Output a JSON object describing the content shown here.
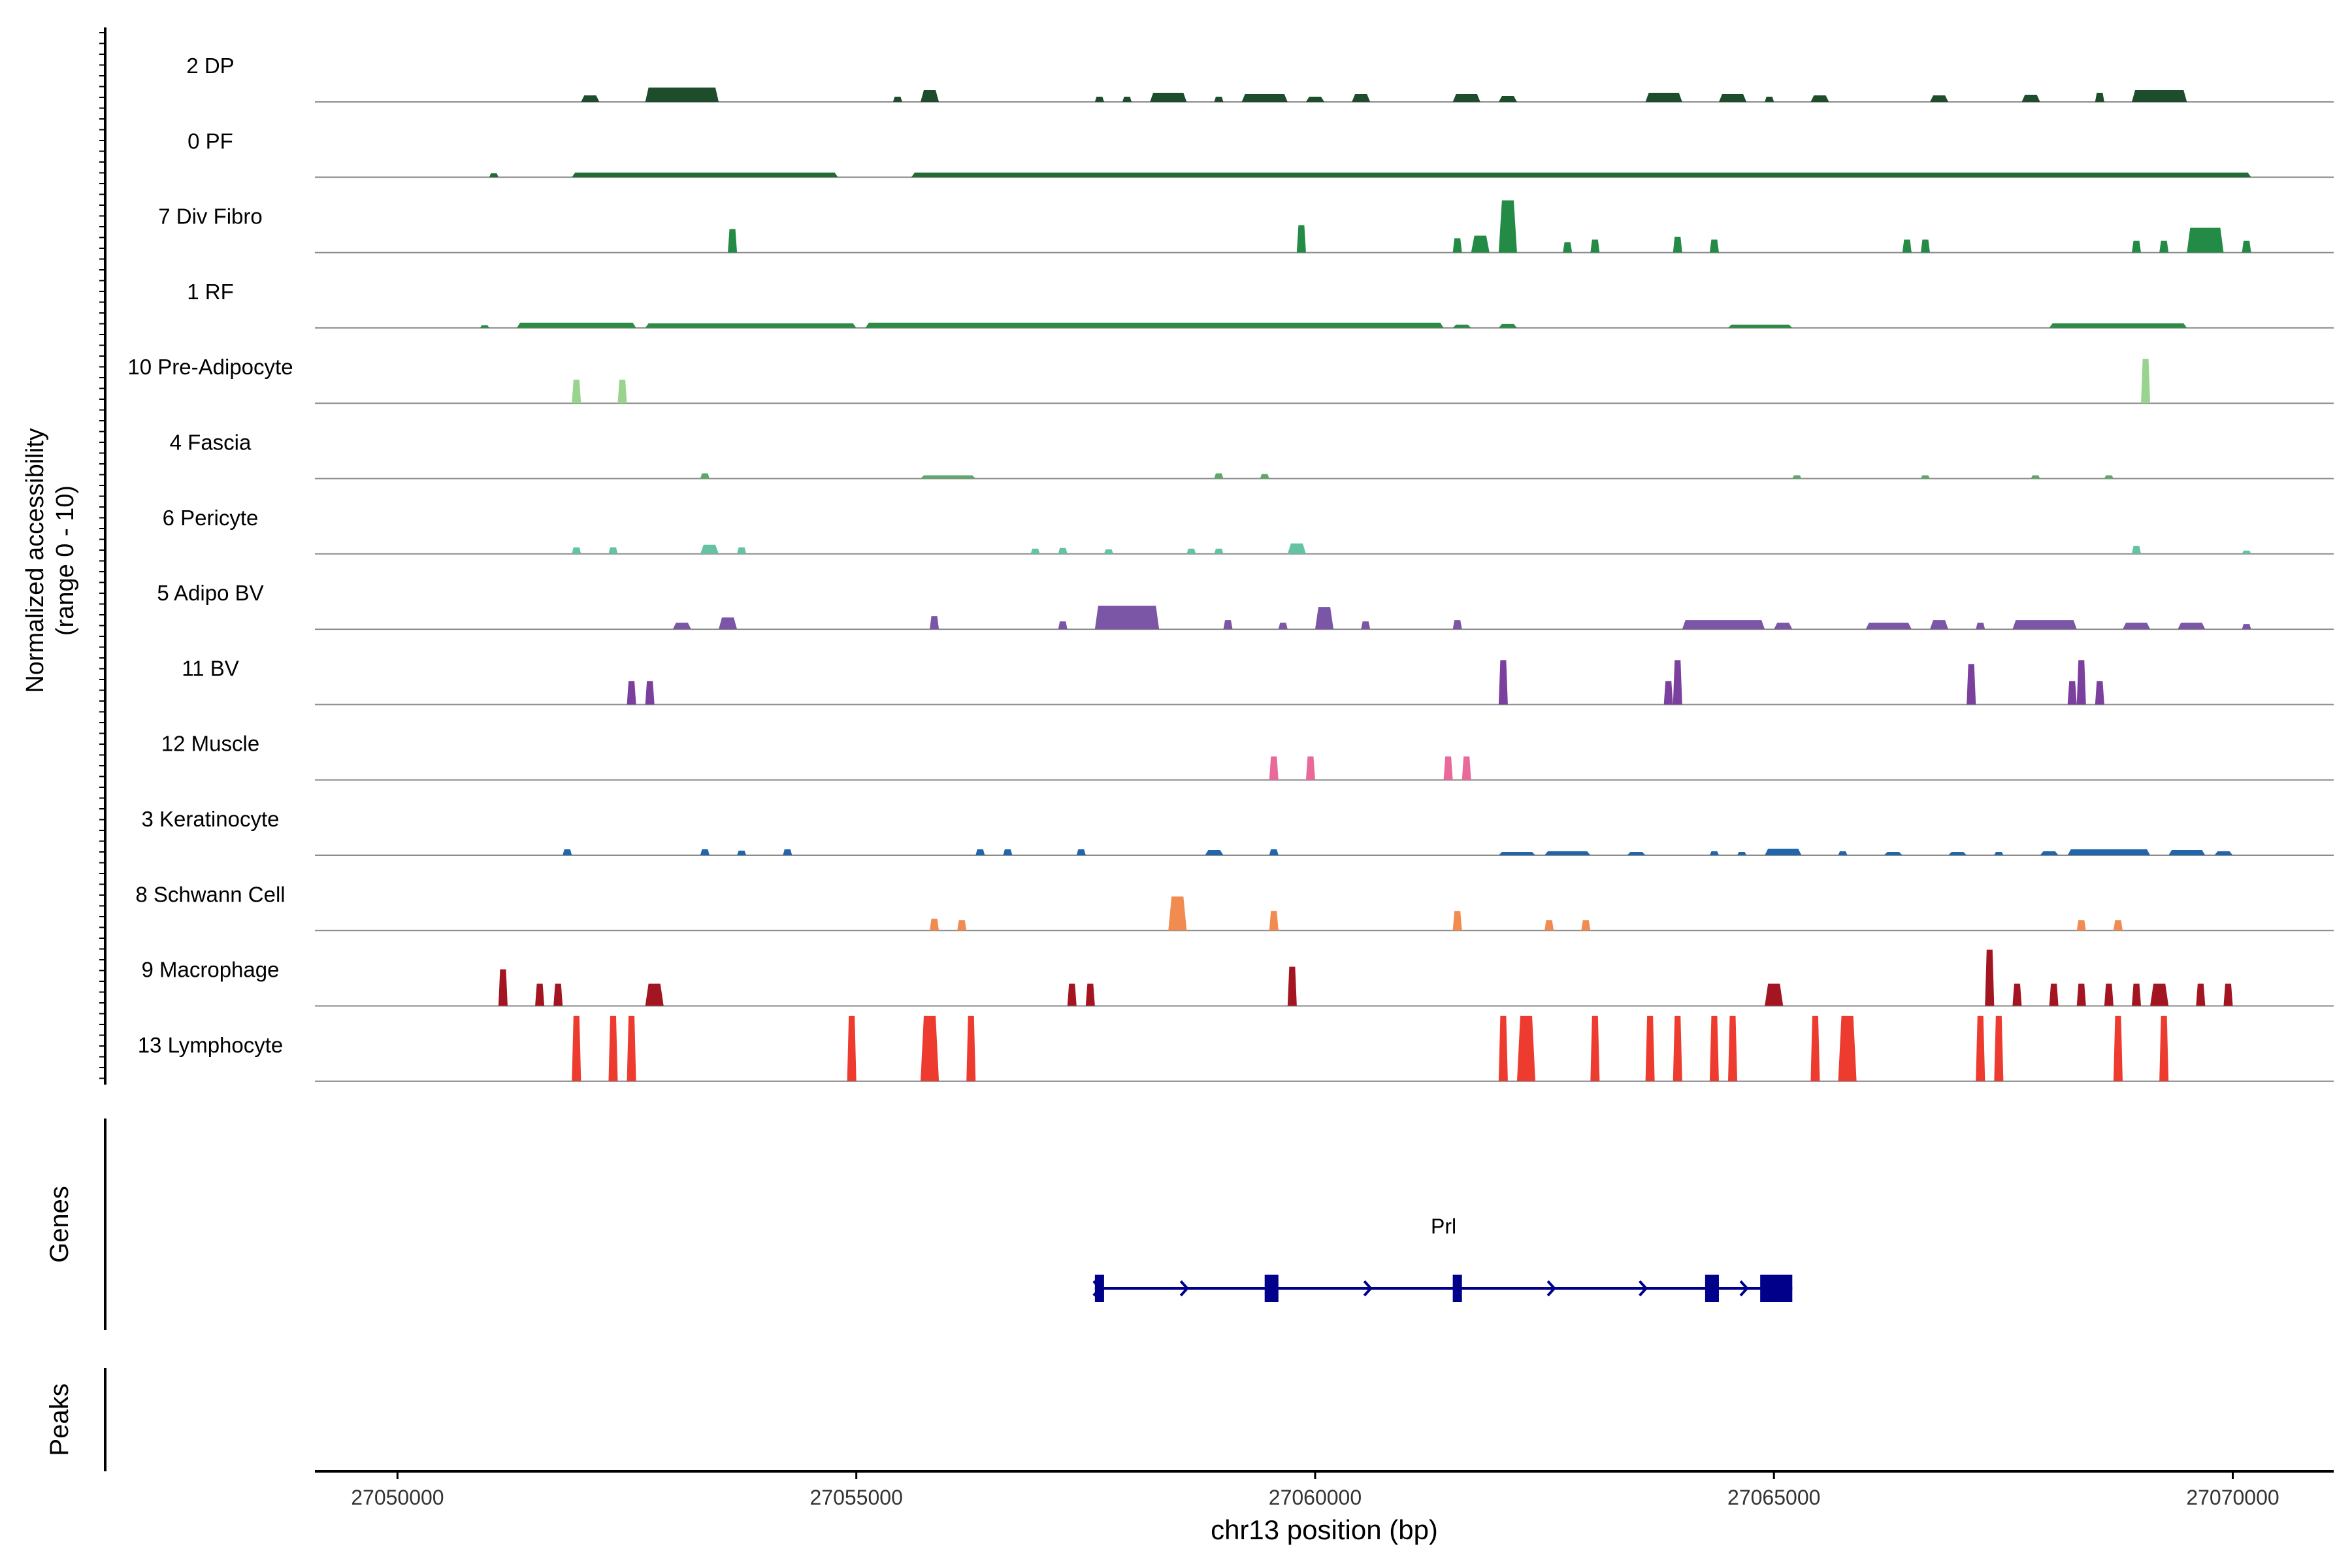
{
  "chart_data": {
    "type": "area",
    "chromosome": "chr13",
    "xlabel": "chr13 position (bp)",
    "ylabel_line1": "Normalized accessibility",
    "ylabel_line2": "(range 0 - 10)",
    "ylim": [
      0,
      10
    ],
    "xlim": [
      27049100,
      27071100
    ],
    "x_ticks": [
      27050000,
      27055000,
      27060000,
      27065000,
      27070000
    ],
    "tracks": [
      {
        "name": "2 DP",
        "color": "#1E4D2B",
        "peaks": [
          [
            27052000,
            27052200,
            1.0
          ],
          [
            27052700,
            27053500,
            2.2
          ],
          [
            27055400,
            27055500,
            0.8
          ],
          [
            27055700,
            27055900,
            1.8
          ],
          [
            27057600,
            27057700,
            0.8
          ],
          [
            27057900,
            27058000,
            0.8
          ],
          [
            27058200,
            27058600,
            1.4
          ],
          [
            27058900,
            27059000,
            0.8
          ],
          [
            27059200,
            27059700,
            1.2
          ],
          [
            27059900,
            27060100,
            0.8
          ],
          [
            27060400,
            27060600,
            1.2
          ],
          [
            27061500,
            27061800,
            1.2
          ],
          [
            27062000,
            27062200,
            0.9
          ],
          [
            27063600,
            27064000,
            1.4
          ],
          [
            27064400,
            27064700,
            1.2
          ],
          [
            27064900,
            27065000,
            0.8
          ],
          [
            27065400,
            27065600,
            1.0
          ],
          [
            27066700,
            27066900,
            1.0
          ],
          [
            27067700,
            27067900,
            1.1
          ],
          [
            27068500,
            27068600,
            1.4
          ],
          [
            27068900,
            27069500,
            1.8
          ]
        ]
      },
      {
        "name": "0 PF",
        "color": "#236B35",
        "peaks": [
          [
            27051000,
            27051100,
            0.6
          ],
          [
            27051900,
            27054800,
            0.7
          ],
          [
            27055600,
            27070200,
            0.7
          ]
        ]
      },
      {
        "name": "7 Div Fibro",
        "color": "#238B45",
        "peaks": [
          [
            27053600,
            27053700,
            3.6
          ],
          [
            27059800,
            27059900,
            4.2
          ],
          [
            27061500,
            27061600,
            2.2
          ],
          [
            27061700,
            27061900,
            2.6
          ],
          [
            27062000,
            27062200,
            8.0
          ],
          [
            27062700,
            27062800,
            1.6
          ],
          [
            27063000,
            27063100,
            2.0
          ],
          [
            27063900,
            27064000,
            2.4
          ],
          [
            27064300,
            27064400,
            2.0
          ],
          [
            27066400,
            27066500,
            2.0
          ],
          [
            27066600,
            27066700,
            2.0
          ],
          [
            27068900,
            27069000,
            1.8
          ],
          [
            27069200,
            27069300,
            1.8
          ],
          [
            27069500,
            27069900,
            3.8
          ],
          [
            27070100,
            27070200,
            1.8
          ]
        ]
      },
      {
        "name": "1 RF",
        "color": "#2E8B45",
        "peaks": [
          [
            27050900,
            27051000,
            0.4
          ],
          [
            27051300,
            27052600,
            0.8
          ],
          [
            27052700,
            27055000,
            0.7
          ],
          [
            27055100,
            27061400,
            0.8
          ],
          [
            27061500,
            27061700,
            0.5
          ],
          [
            27062000,
            27062200,
            0.6
          ],
          [
            27064500,
            27065200,
            0.5
          ],
          [
            27068000,
            27069500,
            0.7
          ]
        ]
      },
      {
        "name": "10 Pre-Adipocyte",
        "color": "#98D48E",
        "peaks": [
          [
            27051900,
            27052000,
            3.6
          ],
          [
            27052400,
            27052500,
            3.6
          ],
          [
            27069000,
            27069100,
            6.8
          ]
        ]
      },
      {
        "name": "4 Fascia",
        "color": "#5FA86A",
        "peaks": [
          [
            27053300,
            27053400,
            0.8
          ],
          [
            27055700,
            27056300,
            0.5
          ],
          [
            27058900,
            27059000,
            0.8
          ],
          [
            27059400,
            27059500,
            0.7
          ],
          [
            27065200,
            27065300,
            0.5
          ],
          [
            27066600,
            27066700,
            0.5
          ],
          [
            27067800,
            27067900,
            0.5
          ],
          [
            27068600,
            27068700,
            0.5
          ]
        ]
      },
      {
        "name": "6 Pericyte",
        "color": "#66C2A4",
        "peaks": [
          [
            27051900,
            27052000,
            1.0
          ],
          [
            27052300,
            27052400,
            1.0
          ],
          [
            27053300,
            27053500,
            1.4
          ],
          [
            27053700,
            27053800,
            1.0
          ],
          [
            27056900,
            27057000,
            0.8
          ],
          [
            27057200,
            27057300,
            0.9
          ],
          [
            27057700,
            27057800,
            0.7
          ],
          [
            27058600,
            27058700,
            0.8
          ],
          [
            27058900,
            27059000,
            0.8
          ],
          [
            27059700,
            27059900,
            1.6
          ],
          [
            27068900,
            27069000,
            1.2
          ],
          [
            27070100,
            27070200,
            0.5
          ]
        ]
      },
      {
        "name": "5 Adipo BV",
        "color": "#7B55A6",
        "peaks": [
          [
            27053000,
            27053200,
            1.0
          ],
          [
            27053500,
            27053700,
            1.8
          ],
          [
            27055800,
            27055900,
            2.0
          ],
          [
            27057200,
            27057300,
            1.2
          ],
          [
            27057600,
            27058300,
            3.6
          ],
          [
            27059000,
            27059100,
            1.4
          ],
          [
            27059600,
            27059700,
            1.0
          ],
          [
            27060000,
            27060200,
            3.4
          ],
          [
            27060500,
            27060600,
            1.2
          ],
          [
            27061500,
            27061600,
            1.4
          ],
          [
            27064000,
            27064900,
            1.4
          ],
          [
            27065000,
            27065200,
            1.0
          ],
          [
            27066000,
            27066500,
            1.0
          ],
          [
            27066700,
            27066900,
            1.4
          ],
          [
            27067200,
            27067300,
            1.0
          ],
          [
            27067600,
            27068300,
            1.4
          ],
          [
            27068800,
            27069100,
            1.0
          ],
          [
            27069400,
            27069700,
            1.0
          ],
          [
            27070100,
            27070200,
            0.8
          ]
        ]
      },
      {
        "name": "11 BV",
        "color": "#7B3F9E",
        "peaks": [
          [
            27052500,
            27052600,
            3.6
          ],
          [
            27052700,
            27052800,
            3.6
          ],
          [
            27062000,
            27062100,
            6.8
          ],
          [
            27063800,
            27063900,
            3.6
          ],
          [
            27063900,
            27064000,
            6.8
          ],
          [
            27067100,
            27067200,
            6.2
          ],
          [
            27068200,
            27068300,
            3.6
          ],
          [
            27068300,
            27068400,
            6.8
          ],
          [
            27068500,
            27068600,
            3.6
          ]
        ]
      },
      {
        "name": "12 Muscle",
        "color": "#E96A9A",
        "peaks": [
          [
            27059500,
            27059600,
            3.6
          ],
          [
            27059900,
            27060000,
            3.6
          ],
          [
            27061400,
            27061500,
            3.6
          ],
          [
            27061600,
            27061700,
            3.6
          ]
        ]
      },
      {
        "name": "3 Keratinocyte",
        "color": "#2166AC",
        "peaks": [
          [
            27051800,
            27051900,
            0.9
          ],
          [
            27053300,
            27053400,
            0.9
          ],
          [
            27053700,
            27053800,
            0.7
          ],
          [
            27054200,
            27054300,
            0.9
          ],
          [
            27056300,
            27056400,
            0.9
          ],
          [
            27056600,
            27056700,
            0.9
          ],
          [
            27057400,
            27057500,
            0.9
          ],
          [
            27058800,
            27059000,
            0.8
          ],
          [
            27059500,
            27059600,
            0.9
          ],
          [
            27062000,
            27062400,
            0.5
          ],
          [
            27062500,
            27063000,
            0.6
          ],
          [
            27063400,
            27063600,
            0.5
          ],
          [
            27064300,
            27064400,
            0.6
          ],
          [
            27064600,
            27064700,
            0.5
          ],
          [
            27064900,
            27065300,
            1.0
          ],
          [
            27065700,
            27065800,
            0.6
          ],
          [
            27066200,
            27066400,
            0.5
          ],
          [
            27066900,
            27067100,
            0.5
          ],
          [
            27067400,
            27067500,
            0.5
          ],
          [
            27067900,
            27068100,
            0.6
          ],
          [
            27068200,
            27069100,
            0.9
          ],
          [
            27069300,
            27069700,
            0.8
          ],
          [
            27069800,
            27070000,
            0.6
          ]
        ]
      },
      {
        "name": "8 Schwann Cell",
        "color": "#F28B50",
        "peaks": [
          [
            27055800,
            27055900,
            1.8
          ],
          [
            27056100,
            27056200,
            1.6
          ],
          [
            27058400,
            27058600,
            5.2
          ],
          [
            27059500,
            27059600,
            3.0
          ],
          [
            27061500,
            27061600,
            3.0
          ],
          [
            27062500,
            27062600,
            1.6
          ],
          [
            27062900,
            27063000,
            1.6
          ],
          [
            27068300,
            27068400,
            1.6
          ],
          [
            27068700,
            27068800,
            1.6
          ]
        ]
      },
      {
        "name": "9 Macrophage",
        "color": "#A31520",
        "peaks": [
          [
            27051100,
            27051200,
            5.6
          ],
          [
            27051500,
            27051600,
            3.4
          ],
          [
            27051700,
            27051800,
            3.4
          ],
          [
            27052700,
            27052900,
            3.4
          ],
          [
            27057300,
            27057400,
            3.4
          ],
          [
            27057500,
            27057600,
            3.4
          ],
          [
            27059700,
            27059800,
            6.0
          ],
          [
            27064900,
            27065100,
            3.4
          ],
          [
            27067300,
            27067400,
            8.6
          ],
          [
            27067600,
            27067700,
            3.4
          ],
          [
            27068000,
            27068100,
            3.4
          ],
          [
            27068300,
            27068400,
            3.4
          ],
          [
            27068600,
            27068700,
            3.4
          ],
          [
            27068900,
            27069000,
            3.4
          ],
          [
            27069100,
            27069300,
            3.4
          ],
          [
            27069600,
            27069700,
            3.4
          ],
          [
            27069900,
            27070000,
            3.4
          ]
        ]
      },
      {
        "name": "13 Lymphocyte",
        "color": "#EE3B2F",
        "peaks": [
          [
            27051900,
            27052000,
            10
          ],
          [
            27052300,
            27052400,
            10
          ],
          [
            27052500,
            27052600,
            10
          ],
          [
            27054900,
            27055000,
            10
          ],
          [
            27055700,
            27055900,
            10
          ],
          [
            27056200,
            27056300,
            10
          ],
          [
            27062000,
            27062100,
            10
          ],
          [
            27062200,
            27062400,
            10
          ],
          [
            27063000,
            27063100,
            10
          ],
          [
            27063600,
            27063700,
            10
          ],
          [
            27063900,
            27064000,
            10
          ],
          [
            27064300,
            27064400,
            10
          ],
          [
            27064500,
            27064600,
            10
          ],
          [
            27065400,
            27065500,
            10
          ],
          [
            27065700,
            27065900,
            10
          ],
          [
            27067200,
            27067300,
            10
          ],
          [
            27067400,
            27067500,
            10
          ],
          [
            27068700,
            27068800,
            10
          ],
          [
            27069200,
            27069300,
            10
          ]
        ]
      }
    ],
    "genes_label": "Genes",
    "peaks_label": "Peaks",
    "gene": {
      "name": "Prl",
      "color": "#00008B",
      "start": 27057600,
      "end": 27065200,
      "exons": [
        [
          27057600,
          27057700
        ],
        [
          27059450,
          27059600
        ],
        [
          27061500,
          27061600
        ],
        [
          27064250,
          27064400
        ],
        [
          27064850,
          27065200
        ]
      ],
      "arrows": [
        27057600,
        27058550,
        27060550,
        27062550,
        27063550,
        27064650
      ]
    }
  }
}
